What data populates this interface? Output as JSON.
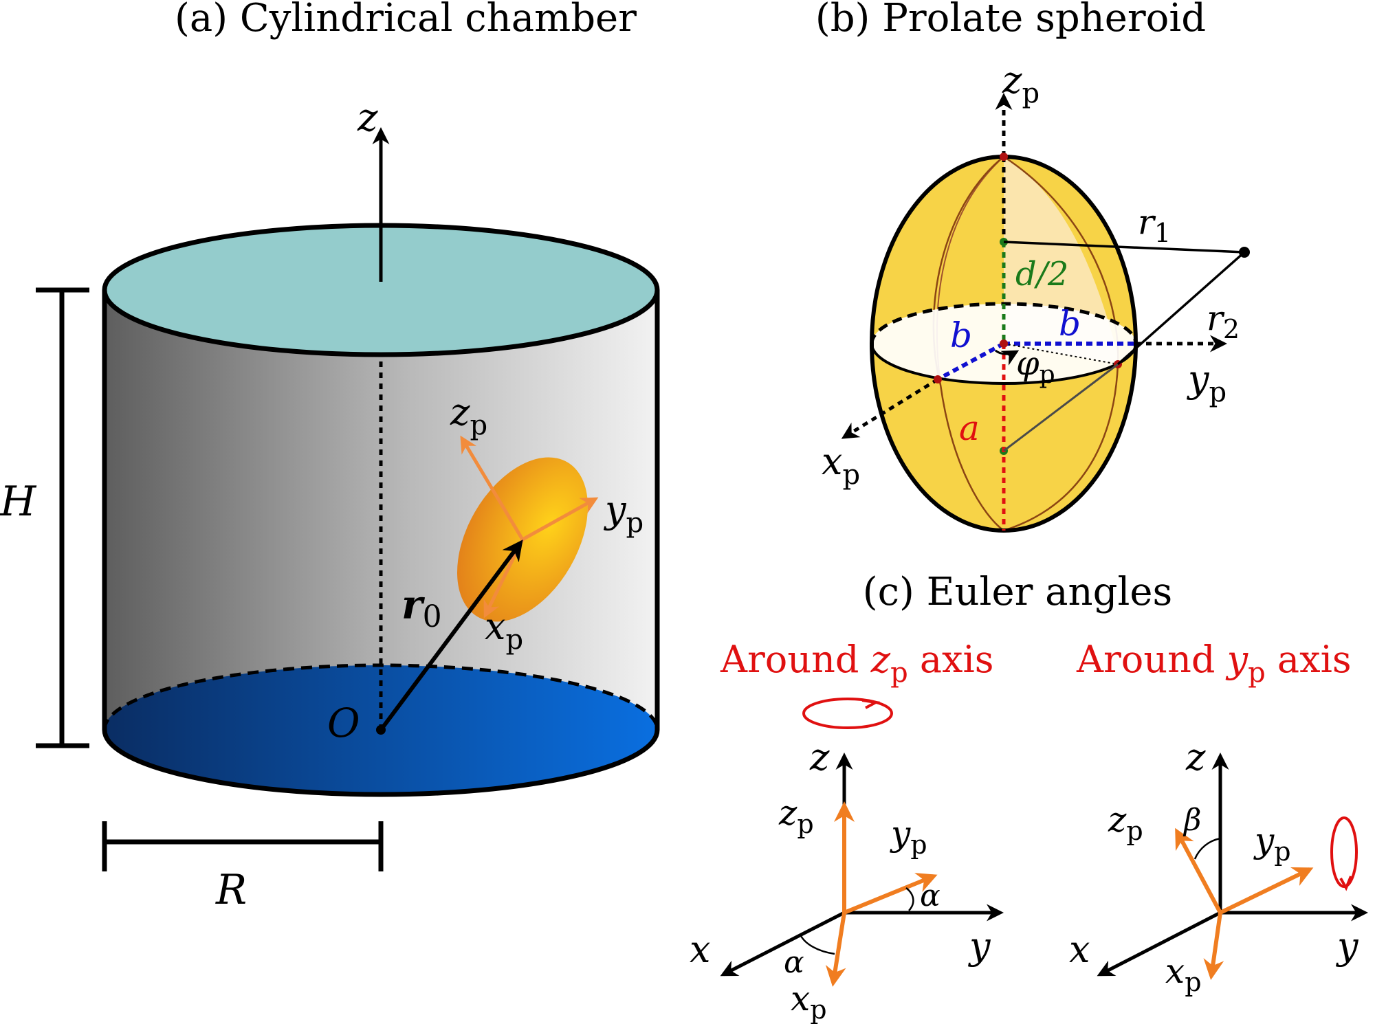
{
  "panel_a": {
    "title": "(a) Cylindrical chamber",
    "axis_z": "z",
    "height_label": "H",
    "radius_label": "R",
    "origin_label": "O",
    "position_vector": "r",
    "position_vector_sub": "0",
    "particle_axes": {
      "x": "x",
      "x_sub": "p",
      "y": "y",
      "y_sub": "p",
      "z": "z",
      "z_sub": "p"
    },
    "colors": {
      "top": "#94cccc",
      "bottom": "#0a5fd0",
      "particle": "#f2a51a",
      "arrow": "#f28c3c"
    }
  },
  "panel_b": {
    "title": "(b) Prolate spheroid",
    "axes": {
      "x": "x",
      "x_sub": "p",
      "y": "y",
      "y_sub": "p",
      "z": "z",
      "z_sub": "p"
    },
    "r1": "r",
    "r1_sub": "1",
    "r2": "r",
    "r2_sub": "2",
    "half_distance": "d/2",
    "semi_minor": "b",
    "semi_major": "a",
    "angle": "φ",
    "angle_sub": "p",
    "colors": {
      "body": "#f7d347",
      "minor": "#1010d0",
      "major": "#e01010",
      "focal": "#1a7a1a"
    }
  },
  "panel_c": {
    "title": "(c) Euler angles",
    "rot1": {
      "pre": "Around ",
      "axis": "z",
      "axis_sub": "p",
      "post": " axis"
    },
    "rot2": {
      "pre": "Around ",
      "axis": "y",
      "axis_sub": "p",
      "post": " axis"
    },
    "frame": {
      "x": "x",
      "y": "y",
      "z": "z",
      "xp": "x",
      "yp": "y",
      "zp": "z",
      "sub": "p"
    },
    "alpha": "α",
    "beta": "β",
    "colors": {
      "accent": "#e01010",
      "arrow": "#f07d20"
    }
  }
}
